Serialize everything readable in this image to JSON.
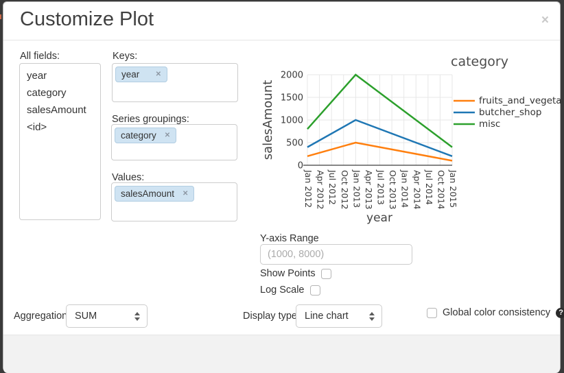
{
  "dialog": {
    "title": "Customize Plot",
    "close_glyph": "×"
  },
  "fields_panel": {
    "all_fields_label": "All fields:",
    "all_fields": [
      "year",
      "category",
      "salesAmount",
      "<id>"
    ],
    "keys_label": "Keys:",
    "keys": [
      "year"
    ],
    "series_groupings_label": "Series groupings:",
    "series_groupings": [
      "category"
    ],
    "values_label": "Values:",
    "values": [
      "salesAmount"
    ],
    "tag_remove_glyph": "✕"
  },
  "chart_data": {
    "type": "line",
    "x_axis": {
      "label": "year",
      "ticks": [
        "Jan 2012",
        "Apr 2012",
        "Jul 2012",
        "Oct 2012",
        "Jan 2013",
        "Apr 2013",
        "Jul 2013",
        "Oct 2013",
        "Jan 2014",
        "Apr 2014",
        "Jul 2014",
        "Oct 2014",
        "Jan 2015"
      ]
    },
    "y_axis": {
      "label": "salesAmount",
      "ticks": [
        0,
        500,
        1000,
        1500,
        2000
      ],
      "range": [
        0,
        2000
      ]
    },
    "grid": true,
    "legend": {
      "title": "category",
      "position": "right"
    },
    "series": [
      {
        "name": "fruits_and_vegetable",
        "color": "#ff7f0e",
        "points": [
          {
            "x": "Jan 2012",
            "y": 200
          },
          {
            "x": "Jan 2013",
            "y": 500
          },
          {
            "x": "Jan 2015",
            "y": 100
          }
        ]
      },
      {
        "name": "butcher_shop",
        "color": "#1f77b4",
        "points": [
          {
            "x": "Jan 2012",
            "y": 400
          },
          {
            "x": "Jan 2013",
            "y": 1000
          },
          {
            "x": "Jan 2015",
            "y": 200
          }
        ]
      },
      {
        "name": "misc",
        "color": "#2ca02c",
        "points": [
          {
            "x": "Jan 2012",
            "y": 800
          },
          {
            "x": "Jan 2013",
            "y": 2000
          },
          {
            "x": "Jan 2015",
            "y": 400
          }
        ]
      }
    ]
  },
  "controls": {
    "y_axis_range_label": "Y-axis Range",
    "y_axis_range_placeholder": "(1000, 8000)",
    "y_axis_range_value": "",
    "show_points_label": "Show Points",
    "show_points_checked": false,
    "log_scale_label": "Log Scale",
    "log_scale_checked": false,
    "aggregation_label": "Aggregation:",
    "aggregation_value": "SUM",
    "display_type_label": "Display type:",
    "display_type_value": "Line chart",
    "global_color_label": "Global color consistency",
    "global_color_checked": false,
    "help_glyph": "?"
  }
}
